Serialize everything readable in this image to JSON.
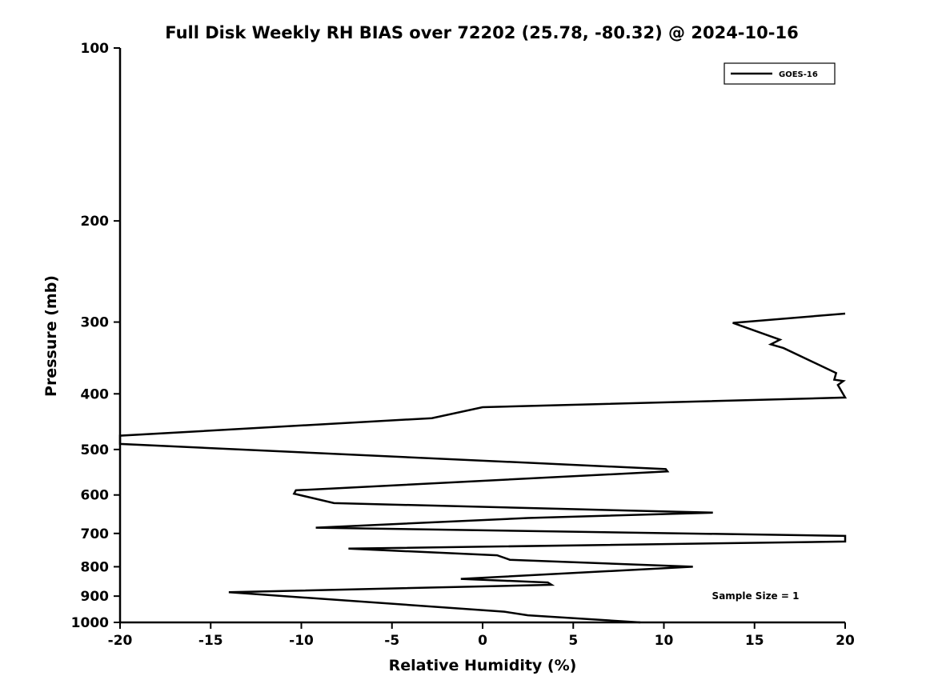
{
  "chart_data": {
    "type": "line",
    "title": "Full Disk Weekly RH BIAS over 72202 (25.78, -80.32) @ 2024-10-16",
    "xlabel": "Relative Humidity (%)",
    "ylabel": "Pressure (mb)",
    "xlim": [
      -20,
      20
    ],
    "ylim": [
      100,
      1000
    ],
    "yscale": "log",
    "y_inverted": true,
    "grid": false,
    "xticks": [
      -20,
      -15,
      -10,
      -5,
      0,
      5,
      10,
      15,
      20
    ],
    "yticks": [
      100,
      200,
      300,
      400,
      500,
      600,
      700,
      800,
      900,
      1000
    ],
    "legend_position": "upper right",
    "annotation": "Sample Size = 1",
    "colors": {
      "line": "#000000",
      "background": "#ffffff",
      "axis": "#000000"
    },
    "series": [
      {
        "name": "GOES-16",
        "color": "#000000",
        "points_format": "[rh_bias_percent, pressure_mb]",
        "points": [
          [
            20.0,
            290
          ],
          [
            13.8,
            301
          ],
          [
            16.4,
            322
          ],
          [
            15.9,
            328
          ],
          [
            16.6,
            333
          ],
          [
            19.5,
            368
          ],
          [
            19.4,
            378
          ],
          [
            19.9,
            380
          ],
          [
            19.6,
            386
          ],
          [
            20.0,
            406
          ],
          [
            0.0,
            422
          ],
          [
            -2.8,
            441
          ],
          [
            -20.0,
            473
          ],
          [
            -20.0,
            489
          ],
          [
            10.1,
            541
          ],
          [
            10.2,
            546
          ],
          [
            -10.3,
            589
          ],
          [
            -10.4,
            597
          ],
          [
            -8.2,
            620
          ],
          [
            12.7,
            644
          ],
          [
            2.5,
            658
          ],
          [
            -9.2,
            684
          ],
          [
            20.0,
            707
          ],
          [
            20.0,
            723
          ],
          [
            -7.4,
            744
          ],
          [
            0.8,
            764
          ],
          [
            1.5,
            778
          ],
          [
            11.6,
            800
          ],
          [
            -1.2,
            840
          ],
          [
            3.6,
            852
          ],
          [
            3.8,
            860
          ],
          [
            -14.0,
            886
          ],
          [
            1.2,
            958
          ],
          [
            2.5,
            972
          ],
          [
            8.7,
            1000
          ]
        ]
      }
    ]
  }
}
